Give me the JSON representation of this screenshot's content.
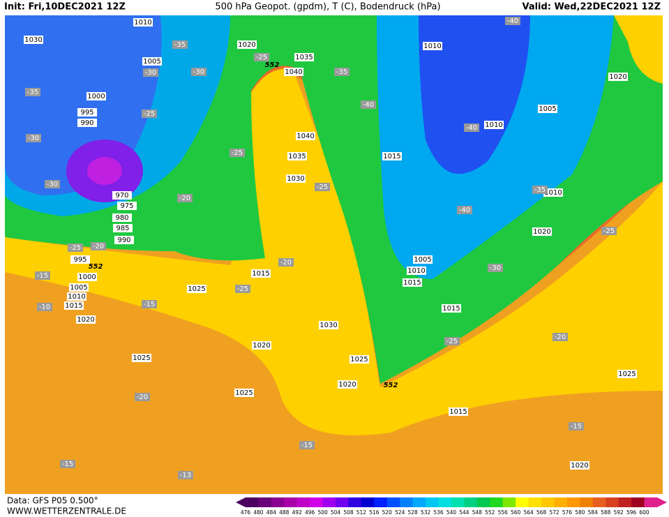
{
  "header": {
    "init": "Init: Fri,10DEC2021 12Z",
    "title": "500 hPa Geopot. (gpdm), T (C), Bodendruck (hPa)",
    "valid": "Valid: Wed,22DEC2021 12Z"
  },
  "footer": {
    "data": "Data: GFS P05 0.500°",
    "site": "WWW.WETTERZENTRALE.DE"
  },
  "isobar_labels": [
    "1030",
    "1010",
    "1020",
    "1035",
    "1040",
    "1005",
    "1000",
    "995",
    "990",
    "970",
    "975",
    "980",
    "985",
    "990",
    "995",
    "1000",
    "1005",
    "1010",
    "1015",
    "1020",
    "1040",
    "1035",
    "1030",
    "1015",
    "1025",
    "1020",
    "1025",
    "1025",
    "1030",
    "1025",
    "1020",
    "1015",
    "1005",
    "1010",
    "1015",
    "1015",
    "1010",
    "1010",
    "1005",
    "1010",
    "1020",
    "1020",
    "1025",
    "1015",
    "1020"
  ],
  "temperature_labels": [
    "-35",
    "-30",
    "-30",
    "-35",
    "-25",
    "-30",
    "-30",
    "-20",
    "-25",
    "-20",
    "-15",
    "-10",
    "-15",
    "-20",
    "-25",
    "-25",
    "-20",
    "-25",
    "-35",
    "-40",
    "-40",
    "-40",
    "-40",
    "-35",
    "-30",
    "-25",
    "-25",
    "-20",
    "-15",
    "-15",
    "-15",
    "-13",
    "-25"
  ],
  "height_labels": [
    "552",
    "552",
    "552"
  ],
  "colorbar": {
    "labels": [
      476,
      480,
      484,
      488,
      492,
      496,
      500,
      504,
      508,
      512,
      516,
      520,
      524,
      528,
      532,
      536,
      540,
      544,
      548,
      552,
      556,
      560,
      564,
      568,
      572,
      576,
      580,
      584,
      588,
      592,
      596,
      600
    ],
    "colors": [
      "#4b0060",
      "#6a0078",
      "#8a0090",
      "#a800a8",
      "#c000c8",
      "#d000e8",
      "#a000f0",
      "#7000f0",
      "#3000e0",
      "#0000d0",
      "#0020ff",
      "#0050ff",
      "#0080ff",
      "#00a8ff",
      "#00c8f0",
      "#00e0e0",
      "#00e0b0",
      "#00d080",
      "#00c850",
      "#20d820",
      "#80e800",
      "#ffff00",
      "#ffe000",
      "#ffc800",
      "#ffb000",
      "#ff9800",
      "#f08000",
      "#e86020",
      "#d84020",
      "#c02020",
      "#a00020",
      "#e0208c"
    ]
  }
}
